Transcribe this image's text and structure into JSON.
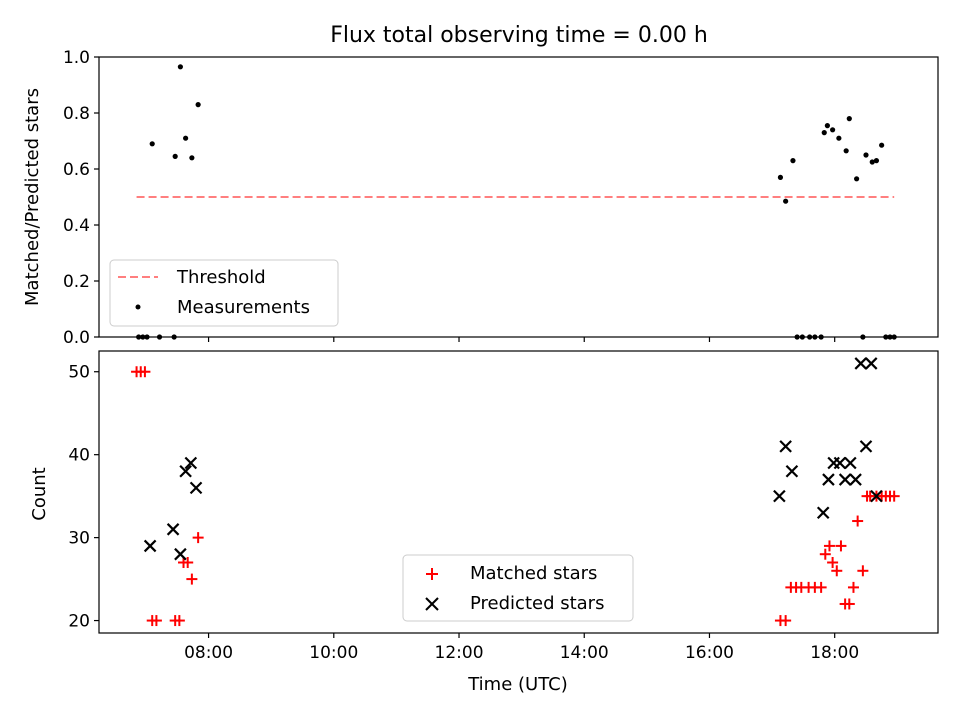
{
  "title": "Flux total observing time = 0.00 h",
  "chart_data": [
    {
      "type": "scatter",
      "ylabel": "Matched/Predicted stars",
      "xlim_hours": [
        6.25,
        19.65
      ],
      "ylim": [
        0,
        1.0
      ],
      "y_ticks": [
        "0.0",
        "0.2",
        "0.4",
        "0.6",
        "0.8",
        "1.0"
      ],
      "legend_placement": "lower-left",
      "threshold": {
        "name": "Threshold",
        "y": 0.5,
        "x": [
          6.85,
          18.95
        ],
        "color": "#ff7f7f",
        "style": "dashed"
      },
      "series": [
        {
          "name": "Measurements",
          "color": "#000000",
          "x": [
            "06:53",
            "06:57",
            "07:01",
            "07:06",
            "07:13",
            "07:27",
            "07:28",
            "07:33",
            "07:38",
            "07:44",
            "07:50",
            "17:08",
            "17:13",
            "17:20",
            "17:24",
            "17:29",
            "17:36",
            "17:41",
            "17:47",
            "17:50",
            "17:53",
            "17:58",
            "18:04",
            "18:11",
            "18:14",
            "18:21",
            "18:27",
            "18:30",
            "18:36",
            "18:40",
            "18:45",
            "18:49",
            "18:53",
            "18:57"
          ],
          "y": [
            0,
            0,
            0,
            0.69,
            0,
            0,
            0.645,
            0.965,
            0.71,
            0.64,
            0.83,
            0.57,
            0.485,
            0.63,
            0,
            0,
            0,
            0,
            0,
            0.73,
            0.755,
            0.74,
            0.71,
            0.665,
            0.78,
            0.565,
            0,
            0.65,
            0.625,
            0.63,
            0.685,
            0,
            0,
            0
          ]
        }
      ]
    },
    {
      "type": "scatter",
      "xlabel": "Time (UTC)",
      "ylabel": "Count",
      "xlim_hours": [
        6.25,
        19.65
      ],
      "ylim": [
        18.5,
        52.5
      ],
      "x_ticks": [
        "08:00",
        "10:00",
        "12:00",
        "14:00",
        "16:00",
        "18:00"
      ],
      "y_ticks": [
        "20",
        "30",
        "40",
        "50"
      ],
      "legend_placement": "lower-center",
      "series": [
        {
          "name": "Matched stars",
          "marker": "plus",
          "color": "#ff0000",
          "x": [
            "06:51",
            "06:55",
            "06:59",
            "07:06",
            "07:10",
            "07:28",
            "07:32",
            "07:36",
            "07:40",
            "07:44",
            "07:50",
            "17:08",
            "17:13",
            "17:18",
            "17:23",
            "17:28",
            "17:35",
            "17:41",
            "17:47",
            "17:51",
            "17:55",
            "17:58",
            "18:02",
            "18:06",
            "18:10",
            "18:14",
            "18:18",
            "18:22",
            "18:27",
            "18:31",
            "18:34",
            "18:40",
            "18:45",
            "18:49",
            "18:53",
            "18:57"
          ],
          "y": [
            50,
            50,
            50,
            20,
            20,
            20,
            20,
            27,
            27,
            25,
            30,
            20,
            20,
            24,
            24,
            24,
            24,
            24,
            24,
            28,
            29,
            27,
            26,
            29,
            22,
            22,
            24,
            32,
            26,
            35,
            35,
            35,
            35,
            35,
            35,
            35
          ]
        },
        {
          "name": "Predicted stars",
          "marker": "x",
          "color": "#000000",
          "x": [
            "07:04",
            "07:26",
            "07:33",
            "07:38",
            "07:43",
            "07:48",
            "17:07",
            "17:13",
            "17:19",
            "17:49",
            "17:54",
            "17:59",
            "18:05",
            "18:10",
            "18:15",
            "18:20",
            "18:25",
            "18:30",
            "18:35",
            "18:40"
          ],
          "y": [
            29,
            31,
            28,
            38,
            39,
            36,
            35,
            41,
            38,
            33,
            37,
            39,
            39,
            37,
            39,
            37,
            51,
            41,
            51,
            35
          ]
        }
      ]
    }
  ]
}
